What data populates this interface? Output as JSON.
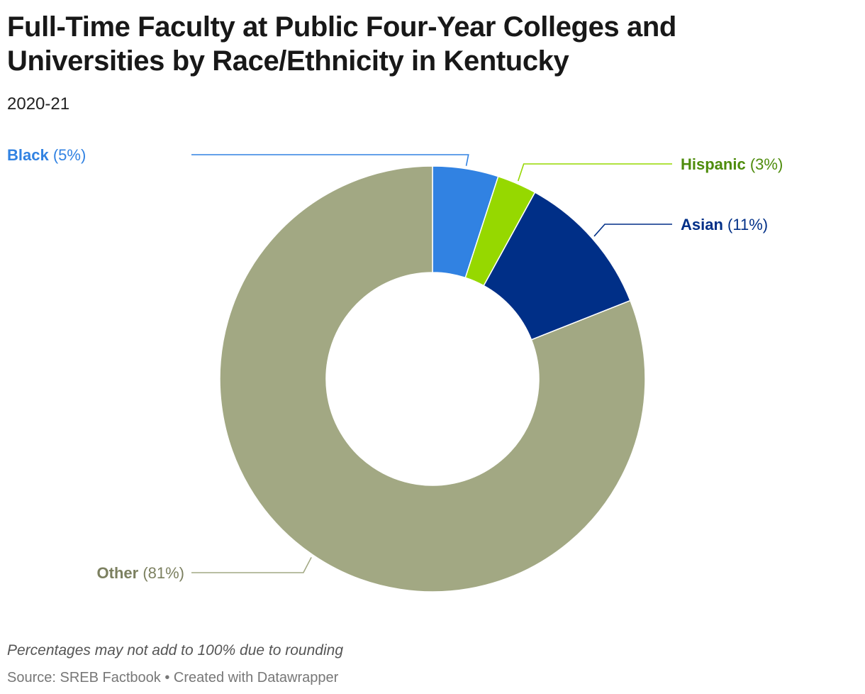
{
  "header": {
    "title": "Full-Time Faculty at Public Four-Year Colleges and Universities by Race/Ethnicity in Kentucky",
    "subtitle": "2020-21"
  },
  "footer": {
    "note": "Percentages may not add to 100% due to rounding",
    "source_label": "Source: SREB Factbook",
    "separator": "•",
    "credit": "Created with Datawrapper"
  },
  "chart_data": {
    "type": "pie",
    "variant": "donut",
    "title": "Full-Time Faculty at Public Four-Year Colleges and Universities by Race/Ethnicity in Kentucky",
    "subtitle": "2020-21",
    "start": "12 o'clock, clockwise",
    "slices": [
      {
        "label": "Black",
        "value": 5,
        "value_label": "(5%)",
        "color": "#3182e2",
        "label_color": "#3182e2"
      },
      {
        "label": "Hispanic",
        "value": 3,
        "value_label": "(3%)",
        "color": "#96d800",
        "label_color": "#4e8c0c"
      },
      {
        "label": "Asian",
        "value": 11,
        "value_label": "(11%)",
        "color": "#002f87",
        "label_color": "#002f87"
      },
      {
        "label": "Other",
        "value": 81,
        "value_label": "(81%)",
        "color": "#a2a883",
        "label_color": "#7c8060"
      }
    ]
  }
}
